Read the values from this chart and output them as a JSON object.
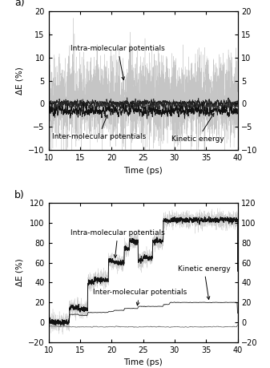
{
  "fig_width": 3.37,
  "fig_height": 4.59,
  "dpi": 100,
  "panel_a": {
    "label": "a)",
    "xlabel": "Time (ps)",
    "ylabel": "ΔE (%)",
    "xlim": [
      10,
      40
    ],
    "ylim": [
      -10,
      20
    ],
    "yticks": [
      -10,
      -5,
      0,
      5,
      10,
      15,
      20
    ],
    "xticks": [
      10,
      15,
      20,
      25,
      30,
      35,
      40
    ],
    "annotation_intra": "Intra-molecular potentials",
    "annotation_inter": "Inter-molecular potentials",
    "annotation_kinetic": "Kinetic energy"
  },
  "panel_b": {
    "label": "b)",
    "xlabel": "Time (ps)",
    "ylabel": "ΔE (%)",
    "xlim": [
      10,
      40
    ],
    "ylim": [
      -20,
      120
    ],
    "yticks": [
      -20,
      0,
      20,
      40,
      60,
      80,
      100,
      120
    ],
    "xticks": [
      10,
      15,
      20,
      25,
      30,
      35,
      40
    ],
    "annotation_intra": "Intra-molecular potentials",
    "annotation_inter": "Inter-molecular potentials",
    "annotation_kinetic": "Kinetic energy"
  }
}
